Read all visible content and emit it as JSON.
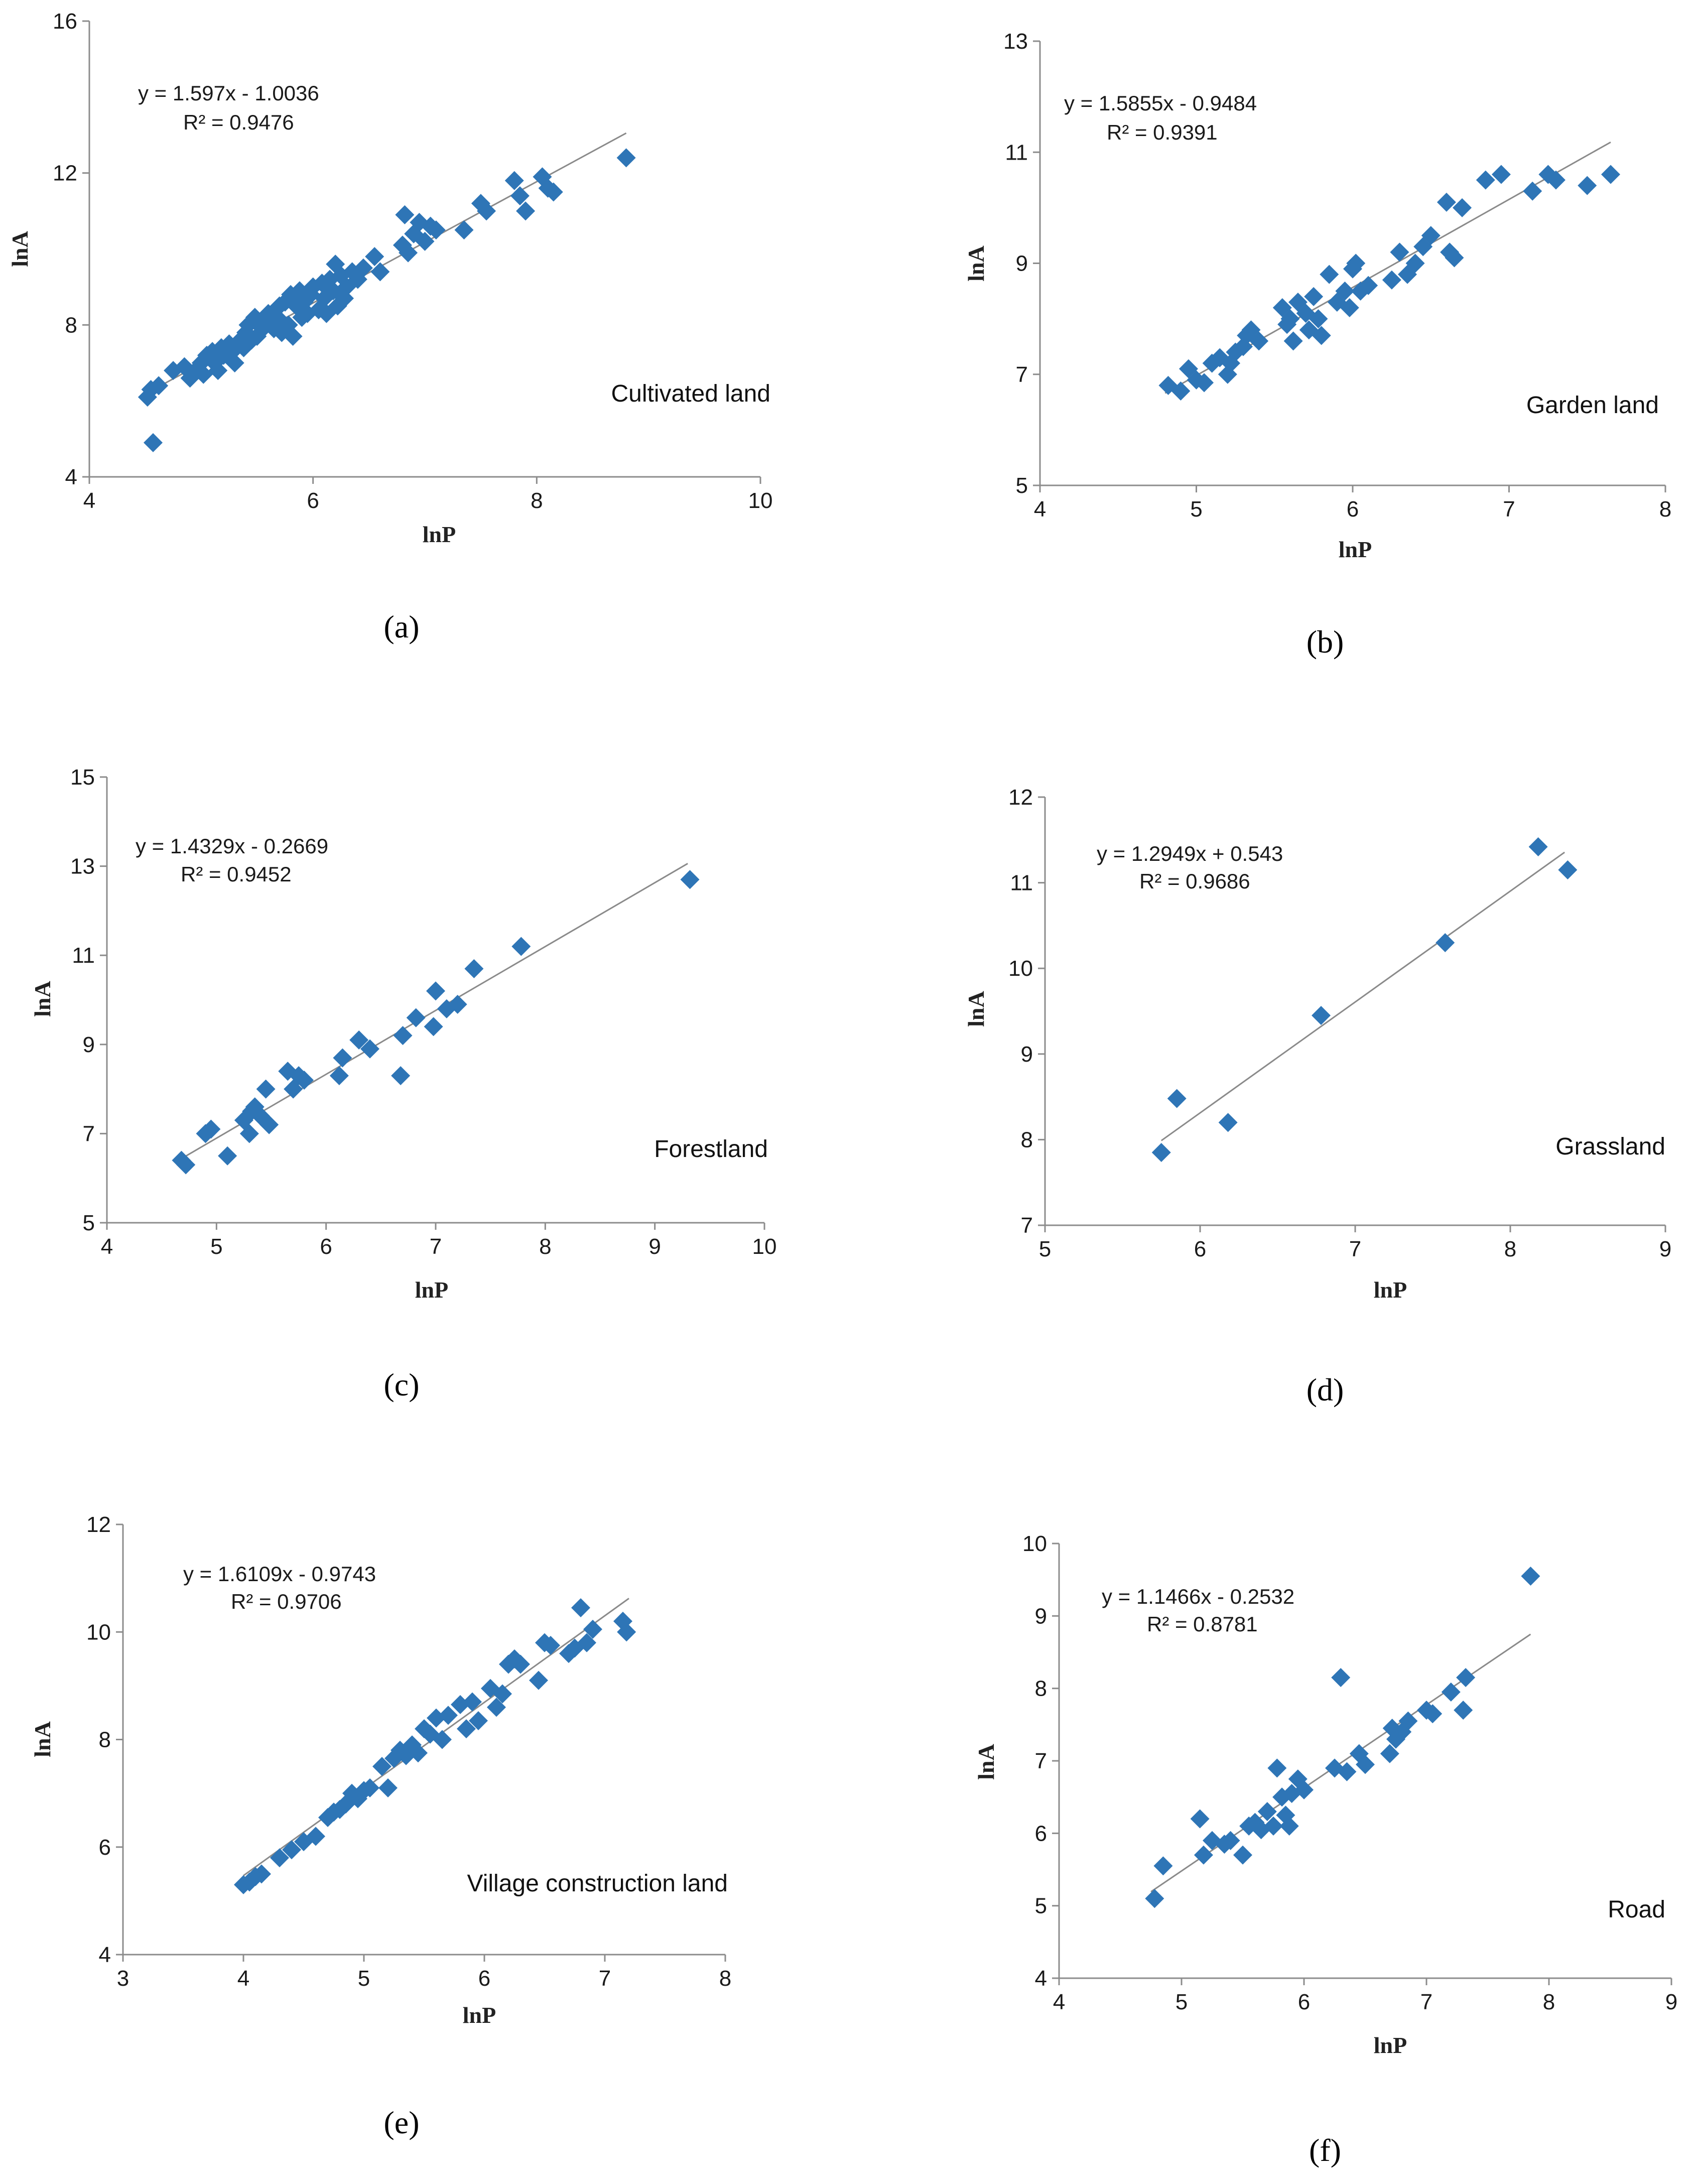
{
  "figure": {
    "panel_letters": [
      "(a)",
      "(b)",
      "(c)",
      "(d)",
      "(e)",
      "(f)"
    ]
  },
  "chart_data": [
    {
      "type": "scatter",
      "panel": "(a)",
      "title": "Cultivated land",
      "xlabel": "lnP",
      "ylabel": "lnA",
      "xlim": [
        4,
        10
      ],
      "ylim": [
        4,
        16
      ],
      "xticks": [
        4,
        6,
        8,
        10
      ],
      "yticks": [
        4,
        8,
        12,
        16
      ],
      "equation": "y = 1.597x - 1.0036",
      "r2": "R² = 0.9476",
      "trendline": {
        "slope": 1.597,
        "intercept": -1.0036,
        "x_range": [
          4.5,
          8.8
        ]
      },
      "x": [
        4.52,
        4.55,
        4.57,
        4.62,
        4.75,
        4.85,
        4.9,
        4.95,
        5.0,
        5.02,
        5.05,
        5.1,
        5.12,
        5.15,
        5.18,
        5.2,
        5.25,
        5.28,
        5.3,
        5.35,
        5.38,
        5.4,
        5.42,
        5.45,
        5.48,
        5.5,
        5.52,
        5.55,
        5.58,
        5.6,
        5.65,
        5.68,
        5.7,
        5.72,
        5.75,
        5.78,
        5.8,
        5.82,
        5.85,
        5.88,
        5.9,
        5.92,
        5.95,
        5.98,
        6.0,
        6.05,
        6.08,
        6.1,
        6.12,
        6.15,
        6.18,
        6.2,
        6.22,
        6.25,
        6.28,
        6.3,
        6.35,
        6.4,
        6.45,
        6.55,
        6.6,
        6.8,
        6.82,
        6.85,
        6.9,
        6.95,
        7.0,
        7.05,
        7.1,
        7.35,
        7.5,
        7.55,
        7.8,
        7.85,
        7.9,
        8.05,
        8.1,
        8.15,
        8.8
      ],
      "y": [
        6.1,
        6.3,
        4.9,
        6.4,
        6.8,
        6.9,
        6.6,
        6.8,
        7.0,
        6.7,
        7.2,
        7.3,
        7.0,
        6.8,
        7.4,
        7.2,
        7.5,
        7.3,
        7.0,
        7.6,
        7.4,
        7.8,
        8.0,
        7.6,
        8.2,
        7.7,
        8.0,
        7.9,
        8.1,
        8.3,
        7.9,
        8.2,
        8.5,
        7.8,
        8.6,
        8.0,
        8.8,
        7.7,
        8.5,
        8.9,
        8.2,
        8.6,
        8.3,
        8.8,
        9.0,
        8.4,
        9.1,
        8.7,
        8.3,
        9.2,
        8.9,
        9.6,
        8.5,
        9.3,
        8.7,
        9.0,
        9.4,
        9.2,
        9.5,
        9.8,
        9.4,
        10.1,
        10.9,
        9.9,
        10.4,
        10.7,
        10.2,
        10.6,
        10.5,
        10.5,
        11.2,
        11.0,
        11.8,
        11.4,
        11.0,
        11.9,
        11.6,
        11.5,
        12.4
      ]
    },
    {
      "type": "scatter",
      "panel": "(b)",
      "title": "Garden land",
      "xlabel": "lnP",
      "ylabel": "lnA",
      "xlim": [
        4,
        8
      ],
      "ylim": [
        5,
        13
      ],
      "xticks": [
        4,
        5,
        6,
        7,
        8
      ],
      "yticks": [
        5,
        7,
        9,
        11,
        13
      ],
      "equation": "y = 1.5855x - 0.9484",
      "r2": "R² = 0.9391",
      "trendline": {
        "slope": 1.5855,
        "intercept": -0.9484,
        "x_range": [
          4.8,
          7.65
        ]
      },
      "x": [
        4.82,
        4.9,
        4.95,
        5.0,
        5.05,
        5.1,
        5.15,
        5.2,
        5.22,
        5.25,
        5.3,
        5.32,
        5.35,
        5.4,
        5.55,
        5.58,
        5.6,
        5.62,
        5.65,
        5.7,
        5.72,
        5.75,
        5.78,
        5.8,
        5.85,
        5.9,
        5.95,
        5.98,
        6.0,
        6.02,
        6.05,
        6.1,
        6.25,
        6.3,
        6.35,
        6.4,
        6.45,
        6.5,
        6.6,
        6.62,
        6.65,
        6.7,
        6.85,
        6.95,
        7.15,
        7.25,
        7.3,
        7.5,
        7.65
      ],
      "y": [
        6.8,
        6.7,
        7.1,
        6.9,
        6.85,
        7.2,
        7.3,
        7.0,
        7.2,
        7.4,
        7.5,
        7.7,
        7.8,
        7.6,
        8.2,
        7.9,
        8.0,
        7.6,
        8.3,
        8.1,
        7.8,
        8.4,
        8.0,
        7.7,
        8.8,
        8.3,
        8.5,
        8.2,
        8.9,
        9.0,
        8.5,
        8.6,
        8.7,
        9.2,
        8.8,
        9.0,
        9.3,
        9.5,
        10.1,
        9.2,
        9.1,
        10.0,
        10.5,
        10.6,
        10.3,
        10.6,
        10.5,
        10.4,
        10.6
      ]
    },
    {
      "type": "scatter",
      "panel": "(c)",
      "title": "Forestland",
      "xlabel": "lnP",
      "ylabel": "lnA",
      "xlim": [
        4,
        10
      ],
      "ylim": [
        5,
        15
      ],
      "xticks": [
        4,
        5,
        6,
        7,
        8,
        9,
        10
      ],
      "yticks": [
        5,
        7,
        9,
        11,
        13,
        15
      ],
      "equation": "y = 1.4329x - 0.2669",
      "r2": "R² = 0.9452",
      "trendline": {
        "slope": 1.4329,
        "intercept": -0.2669,
        "x_range": [
          4.65,
          9.3
        ]
      },
      "x": [
        4.68,
        4.72,
        4.9,
        4.95,
        5.1,
        5.25,
        5.3,
        5.32,
        5.35,
        5.4,
        5.45,
        5.48,
        5.65,
        5.7,
        5.75,
        5.8,
        6.12,
        6.15,
        6.3,
        6.4,
        6.68,
        6.7,
        6.82,
        6.98,
        7.0,
        7.1,
        7.2,
        7.35,
        7.78,
        9.32
      ],
      "y": [
        6.4,
        6.3,
        7.0,
        7.1,
        6.5,
        7.3,
        7.0,
        7.5,
        7.6,
        7.4,
        8.0,
        7.2,
        8.4,
        8.0,
        8.3,
        8.2,
        8.3,
        8.7,
        9.1,
        8.9,
        8.3,
        9.2,
        9.6,
        9.4,
        10.2,
        9.8,
        9.9,
        10.7,
        11.2,
        12.7
      ]
    },
    {
      "type": "scatter",
      "panel": "(d)",
      "title": "Grassland",
      "xlabel": "lnP",
      "ylabel": "lnA",
      "xlim": [
        5,
        9
      ],
      "ylim": [
        7,
        12
      ],
      "xticks": [
        5,
        6,
        7,
        8,
        9
      ],
      "yticks": [
        7,
        8,
        9,
        10,
        11,
        12
      ],
      "equation": "y = 1.2949x + 0.543",
      "r2": "R² = 0.9686",
      "trendline": {
        "slope": 1.2949,
        "intercept": 0.543,
        "x_range": [
          5.75,
          8.35
        ]
      },
      "x": [
        5.75,
        5.85,
        6.18,
        6.78,
        7.58,
        8.18,
        8.37
      ],
      "y": [
        7.85,
        8.48,
        8.2,
        9.45,
        10.3,
        11.42,
        11.15
      ]
    },
    {
      "type": "scatter",
      "panel": "(e)",
      "title": "Village construction land",
      "xlabel": "lnP",
      "ylabel": "lnA",
      "xlim": [
        3,
        8
      ],
      "ylim": [
        4,
        12
      ],
      "xticks": [
        3,
        4,
        5,
        6,
        7,
        8
      ],
      "yticks": [
        4,
        6,
        8,
        10,
        12
      ],
      "equation": "y = 1.6109x - 0.9743",
      "r2": "R² = 0.9706",
      "trendline": {
        "slope": 1.6109,
        "intercept": -0.9743,
        "x_range": [
          4.0,
          7.2
        ]
      },
      "x": [
        4.0,
        4.05,
        4.1,
        4.15,
        4.3,
        4.4,
        4.5,
        4.6,
        4.7,
        4.75,
        4.8,
        4.85,
        4.9,
        4.95,
        5.0,
        5.05,
        5.15,
        5.2,
        5.25,
        5.3,
        5.35,
        5.4,
        5.45,
        5.5,
        5.55,
        5.6,
        5.65,
        5.7,
        5.8,
        5.85,
        5.9,
        5.95,
        6.05,
        6.1,
        6.15,
        6.2,
        6.25,
        6.3,
        6.45,
        6.5,
        6.55,
        6.7,
        6.75,
        6.8,
        6.85,
        6.9,
        7.15,
        7.18
      ],
      "y": [
        5.3,
        5.35,
        5.45,
        5.5,
        5.8,
        5.95,
        6.1,
        6.2,
        6.55,
        6.65,
        6.7,
        6.8,
        7.0,
        6.9,
        7.05,
        7.1,
        7.5,
        7.1,
        7.65,
        7.8,
        7.7,
        7.9,
        7.75,
        8.2,
        8.1,
        8.4,
        8.0,
        8.45,
        8.65,
        8.2,
        8.7,
        8.35,
        8.95,
        8.6,
        8.85,
        9.4,
        9.5,
        9.4,
        9.1,
        9.8,
        9.75,
        9.6,
        9.7,
        10.45,
        9.8,
        10.05,
        10.2,
        10.0
      ]
    },
    {
      "type": "scatter",
      "panel": "(f)",
      "title": "Road",
      "xlabel": "lnP",
      "ylabel": "lnA",
      "xlim": [
        4,
        9
      ],
      "ylim": [
        4,
        10
      ],
      "xticks": [
        4,
        5,
        6,
        7,
        8,
        9
      ],
      "yticks": [
        4,
        5,
        6,
        7,
        8,
        9,
        10
      ],
      "equation": "y = 1.1466x - 0.2532",
      "r2": "R² = 0.8781",
      "trendline": {
        "slope": 1.1466,
        "intercept": -0.2532,
        "x_range": [
          4.75,
          7.85
        ]
      },
      "x": [
        4.78,
        4.85,
        5.15,
        5.18,
        5.25,
        5.35,
        5.4,
        5.5,
        5.55,
        5.6,
        5.65,
        5.7,
        5.75,
        5.78,
        5.82,
        5.85,
        5.88,
        5.9,
        5.95,
        6.0,
        6.25,
        6.3,
        6.35,
        6.45,
        6.5,
        6.7,
        6.72,
        6.75,
        6.8,
        6.85,
        7.0,
        7.05,
        7.2,
        7.3,
        7.32,
        7.85
      ],
      "y": [
        5.1,
        5.55,
        6.2,
        5.7,
        5.9,
        5.85,
        5.9,
        5.7,
        6.1,
        6.15,
        6.05,
        6.3,
        6.1,
        6.9,
        6.5,
        6.25,
        6.1,
        6.55,
        6.75,
        6.6,
        6.9,
        8.15,
        6.85,
        7.1,
        6.95,
        7.1,
        7.45,
        7.3,
        7.4,
        7.55,
        7.7,
        7.65,
        7.95,
        7.7,
        8.15,
        9.55
      ]
    }
  ]
}
